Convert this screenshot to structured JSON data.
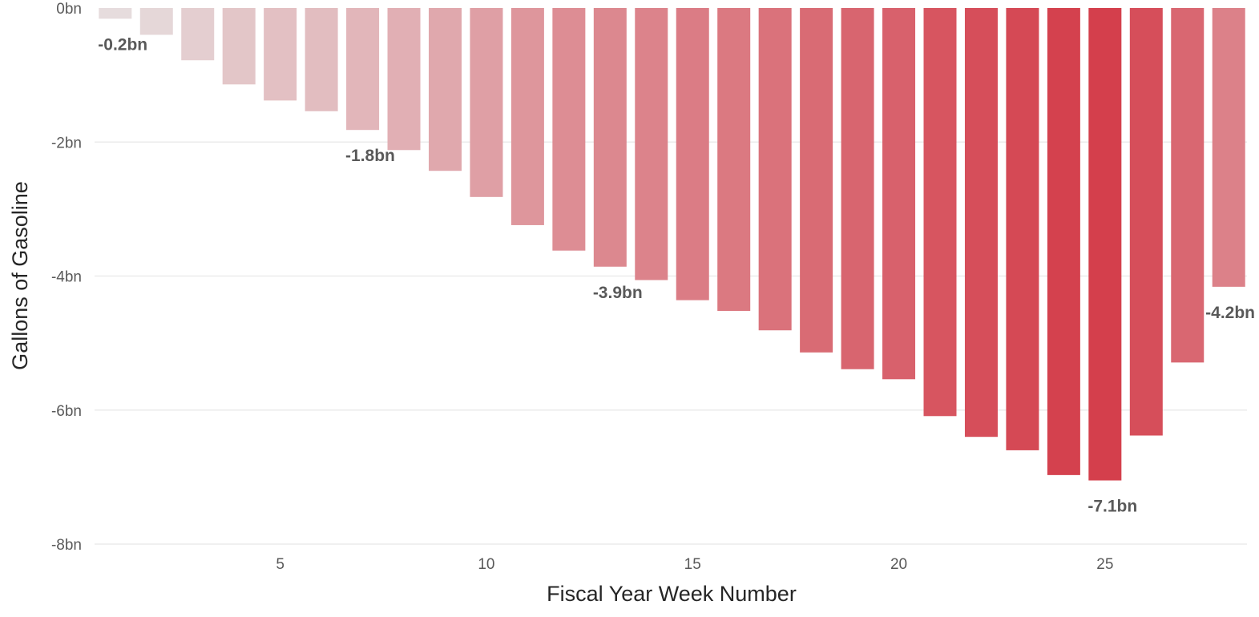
{
  "chart_data": {
    "type": "bar",
    "title": "",
    "xlabel": "Fiscal Year Week Number",
    "ylabel": "Gallons of Gasoline",
    "x": [
      1,
      2,
      3,
      4,
      5,
      6,
      7,
      8,
      9,
      10,
      11,
      12,
      13,
      14,
      15,
      16,
      17,
      18,
      19,
      20,
      21,
      22,
      23,
      24,
      25,
      26,
      27,
      28
    ],
    "values": [
      -0.16,
      -0.4,
      -0.78,
      -1.14,
      -1.38,
      -1.54,
      -1.82,
      -2.12,
      -2.43,
      -2.82,
      -3.24,
      -3.62,
      -3.86,
      -4.06,
      -4.36,
      -4.52,
      -4.81,
      -5.14,
      -5.39,
      -5.54,
      -6.09,
      -6.4,
      -6.6,
      -6.97,
      -7.05,
      -6.38,
      -5.29,
      -4.16
    ],
    "ylim": [
      -8,
      0
    ],
    "yticks": [
      0,
      -2,
      -4,
      -6,
      -8
    ],
    "ytick_labels": [
      "0bn",
      "-2bn",
      "-4bn",
      "-6bn",
      "-8bn"
    ],
    "xticks": [
      5,
      10,
      15,
      20,
      25
    ],
    "xtick_labels": [
      "5",
      "10",
      "15",
      "20",
      "25"
    ],
    "data_labels": [
      {
        "week": 1,
        "text": "-0.2bn"
      },
      {
        "week": 7,
        "text": "-1.8bn"
      },
      {
        "week": 13,
        "text": "-3.9bn"
      },
      {
        "week": 25,
        "text": "-7.1bn"
      },
      {
        "week": 28,
        "text": "-4.2bn"
      }
    ],
    "grid": true,
    "legend": "none",
    "color_scale": {
      "low": "#e6dcdd",
      "high": "#d43f4c"
    }
  }
}
